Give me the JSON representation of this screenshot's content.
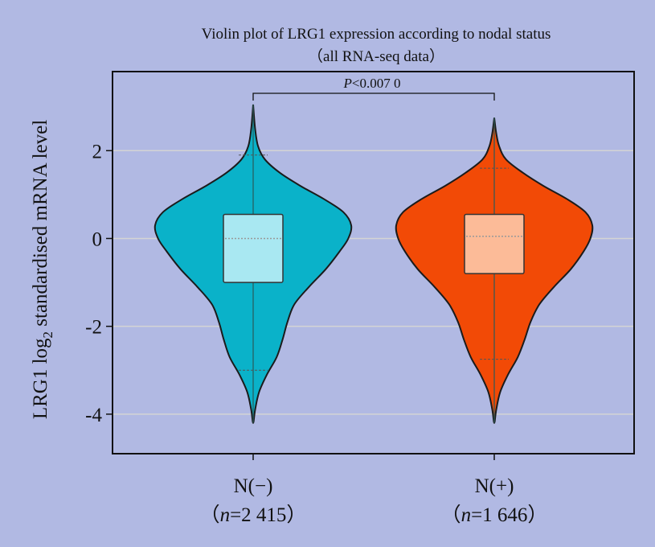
{
  "chart_data": {
    "type": "violin",
    "title": "Violin plot of LRG1 expression according to nodal status",
    "subtitle": "（all RNA-seq data）",
    "ylabel": "LRG1 log2 standardised mRNA level",
    "ylim": [
      -4.9,
      3.8
    ],
    "yticks": [
      -4,
      -2,
      0,
      2
    ],
    "ytick_labels": [
      "-4",
      "-2",
      "0",
      "2"
    ],
    "grid": true,
    "annotation": {
      "text": "P<0.007 0",
      "between": [
        "N(−)",
        "N(+)"
      ]
    },
    "groups": [
      {
        "label": "N(−)",
        "n_label": "（n=2 415）",
        "color": "#0ab2c9",
        "box_color": "#a9e8f2",
        "max": 3.05,
        "min": -4.2,
        "q1": -1.0,
        "median": 0.0,
        "q3": 0.55,
        "whisker_high": 1.9,
        "whisker_low": -3.0,
        "density": [
          [
            -4.2,
            0.0
          ],
          [
            -3.9,
            0.02
          ],
          [
            -3.5,
            0.06
          ],
          [
            -3.1,
            0.14
          ],
          [
            -2.7,
            0.24
          ],
          [
            -2.3,
            0.3
          ],
          [
            -1.9,
            0.35
          ],
          [
            -1.5,
            0.42
          ],
          [
            -1.1,
            0.57
          ],
          [
            -0.7,
            0.74
          ],
          [
            -0.3,
            0.88
          ],
          [
            0.0,
            0.97
          ],
          [
            0.3,
            1.0
          ],
          [
            0.6,
            0.92
          ],
          [
            0.9,
            0.72
          ],
          [
            1.2,
            0.48
          ],
          [
            1.5,
            0.27
          ],
          [
            1.8,
            0.12
          ],
          [
            2.1,
            0.05
          ],
          [
            2.5,
            0.02
          ],
          [
            3.05,
            0.0
          ]
        ]
      },
      {
        "label": "N(+)",
        "n_label": "（n=1 646）",
        "color": "#f24a06",
        "box_color": "#fcbb98",
        "max": 2.75,
        "min": -4.2,
        "q1": -0.8,
        "median": 0.05,
        "q3": 0.55,
        "whisker_high": 1.6,
        "whisker_low": -2.75,
        "density": [
          [
            -4.2,
            0.0
          ],
          [
            -3.9,
            0.02
          ],
          [
            -3.5,
            0.06
          ],
          [
            -3.1,
            0.14
          ],
          [
            -2.7,
            0.24
          ],
          [
            -2.3,
            0.31
          ],
          [
            -1.9,
            0.37
          ],
          [
            -1.5,
            0.46
          ],
          [
            -1.1,
            0.61
          ],
          [
            -0.7,
            0.78
          ],
          [
            -0.3,
            0.91
          ],
          [
            0.0,
            0.98
          ],
          [
            0.3,
            1.0
          ],
          [
            0.6,
            0.93
          ],
          [
            0.9,
            0.74
          ],
          [
            1.2,
            0.5
          ],
          [
            1.5,
            0.29
          ],
          [
            1.8,
            0.12
          ],
          [
            2.1,
            0.05
          ],
          [
            2.4,
            0.02
          ],
          [
            2.75,
            0.0
          ]
        ]
      }
    ]
  }
}
